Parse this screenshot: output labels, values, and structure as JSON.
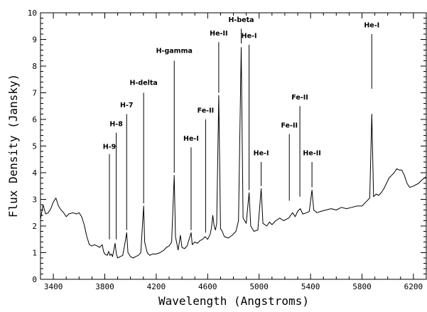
{
  "chart_data": {
    "type": "line",
    "title": "",
    "xlabel": "Wavelength (Angstroms)",
    "ylabel": "Flux Density (Jansky)",
    "xlim": [
      3300,
      6300
    ],
    "ylim": [
      0,
      10
    ],
    "x_ticks": [
      3400,
      3800,
      4200,
      4600,
      5000,
      5400,
      5800,
      6200
    ],
    "y_ticks": [
      0,
      1,
      2,
      3,
      4,
      5,
      6,
      7,
      8,
      9,
      10
    ],
    "grid": false,
    "series": [
      {
        "points": [
          [
            3300,
            2.25
          ],
          [
            3320,
            2.8
          ],
          [
            3340,
            2.45
          ],
          [
            3360,
            2.5
          ],
          [
            3380,
            2.65
          ],
          [
            3400,
            2.9
          ],
          [
            3420,
            3.05
          ],
          [
            3440,
            2.75
          ],
          [
            3460,
            2.6
          ],
          [
            3480,
            2.5
          ],
          [
            3500,
            2.35
          ],
          [
            3520,
            2.45
          ],
          [
            3550,
            2.5
          ],
          [
            3580,
            2.45
          ],
          [
            3600,
            2.5
          ],
          [
            3620,
            2.35
          ],
          [
            3640,
            2.05
          ],
          [
            3660,
            1.6
          ],
          [
            3680,
            1.3
          ],
          [
            3700,
            1.25
          ],
          [
            3720,
            1.3
          ],
          [
            3740,
            1.25
          ],
          [
            3760,
            1.2
          ],
          [
            3780,
            1.3
          ],
          [
            3790,
            1.05
          ],
          [
            3800,
            0.95
          ],
          [
            3820,
            0.9
          ],
          [
            3830,
            1.05
          ],
          [
            3840,
            0.9
          ],
          [
            3850,
            0.95
          ],
          [
            3860,
            0.85
          ],
          [
            3880,
            1.35
          ],
          [
            3890,
            0.95
          ],
          [
            3900,
            0.8
          ],
          [
            3920,
            0.85
          ],
          [
            3940,
            0.9
          ],
          [
            3960,
            1.45
          ],
          [
            3970,
            1.75
          ],
          [
            3980,
            1.0
          ],
          [
            4000,
            0.85
          ],
          [
            4020,
            0.8
          ],
          [
            4040,
            0.85
          ],
          [
            4060,
            0.9
          ],
          [
            4080,
            1.0
          ],
          [
            4095,
            2.2
          ],
          [
            4102,
            2.75
          ],
          [
            4110,
            1.4
          ],
          [
            4130,
            1.0
          ],
          [
            4150,
            0.9
          ],
          [
            4170,
            0.95
          ],
          [
            4200,
            0.95
          ],
          [
            4230,
            1.0
          ],
          [
            4260,
            1.1
          ],
          [
            4280,
            1.2
          ],
          [
            4300,
            1.25
          ],
          [
            4320,
            1.4
          ],
          [
            4340,
            3.9
          ],
          [
            4350,
            1.6
          ],
          [
            4370,
            1.1
          ],
          [
            4388,
            1.65
          ],
          [
            4400,
            1.2
          ],
          [
            4420,
            1.15
          ],
          [
            4440,
            1.25
          ],
          [
            4471,
            1.75
          ],
          [
            4480,
            1.3
          ],
          [
            4500,
            1.4
          ],
          [
            4520,
            1.35
          ],
          [
            4540,
            1.45
          ],
          [
            4560,
            1.5
          ],
          [
            4580,
            1.6
          ],
          [
            4600,
            1.5
          ],
          [
            4620,
            1.7
          ],
          [
            4630,
            1.95
          ],
          [
            4640,
            2.4
          ],
          [
            4650,
            2.0
          ],
          [
            4660,
            1.85
          ],
          [
            4670,
            2.1
          ],
          [
            4686,
            6.9
          ],
          [
            4700,
            1.9
          ],
          [
            4713,
            1.8
          ],
          [
            4730,
            1.6
          ],
          [
            4760,
            1.55
          ],
          [
            4790,
            1.65
          ],
          [
            4820,
            1.8
          ],
          [
            4840,
            2.2
          ],
          [
            4861,
            8.7
          ],
          [
            4875,
            2.3
          ],
          [
            4900,
            2.1
          ],
          [
            4922,
            3.25
          ],
          [
            4935,
            2.0
          ],
          [
            4960,
            1.8
          ],
          [
            4990,
            1.85
          ],
          [
            5016,
            3.4
          ],
          [
            5030,
            2.1
          ],
          [
            5060,
            2.0
          ],
          [
            5080,
            2.15
          ],
          [
            5100,
            2.05
          ],
          [
            5130,
            2.2
          ],
          [
            5160,
            2.3
          ],
          [
            5190,
            2.2
          ],
          [
            5230,
            2.3
          ],
          [
            5260,
            2.5
          ],
          [
            5280,
            2.35
          ],
          [
            5300,
            2.55
          ],
          [
            5320,
            2.65
          ],
          [
            5340,
            2.45
          ],
          [
            5370,
            2.5
          ],
          [
            5390,
            2.55
          ],
          [
            5411,
            3.35
          ],
          [
            5425,
            2.6
          ],
          [
            5450,
            2.5
          ],
          [
            5480,
            2.55
          ],
          [
            5520,
            2.6
          ],
          [
            5560,
            2.65
          ],
          [
            5600,
            2.6
          ],
          [
            5640,
            2.7
          ],
          [
            5680,
            2.65
          ],
          [
            5720,
            2.7
          ],
          [
            5760,
            2.75
          ],
          [
            5800,
            2.75
          ],
          [
            5830,
            2.9
          ],
          [
            5860,
            3.05
          ],
          [
            5876,
            6.2
          ],
          [
            5890,
            3.1
          ],
          [
            5910,
            3.2
          ],
          [
            5930,
            3.15
          ],
          [
            5950,
            3.25
          ],
          [
            5970,
            3.4
          ],
          [
            5990,
            3.6
          ],
          [
            6010,
            3.8
          ],
          [
            6030,
            3.9
          ],
          [
            6050,
            4.0
          ],
          [
            6070,
            4.15
          ],
          [
            6090,
            4.1
          ],
          [
            6110,
            4.1
          ],
          [
            6130,
            3.9
          ],
          [
            6150,
            3.6
          ],
          [
            6170,
            3.45
          ],
          [
            6200,
            3.5
          ],
          [
            6240,
            3.6
          ],
          [
            6270,
            3.75
          ],
          [
            6300,
            3.85
          ]
        ]
      }
    ],
    "annotations": [
      {
        "label": "H-9",
        "x": 3836,
        "line_top": 4.7,
        "line_bottom": 1.5,
        "text_y": 4.9
      },
      {
        "label": "H-8",
        "x": 3889,
        "line_top": 5.5,
        "line_bottom": 1.5,
        "text_y": 5.75
      },
      {
        "label": "H-7",
        "x": 3970,
        "line_top": 6.2,
        "line_bottom": 1.85,
        "text_y": 6.45
      },
      {
        "label": "H-delta",
        "x": 4102,
        "line_top": 7.0,
        "line_bottom": 2.85,
        "text_y": 7.3
      },
      {
        "label": "H-gamma",
        "x": 4340,
        "line_top": 8.2,
        "line_bottom": 4.0,
        "text_y": 8.5
      },
      {
        "label": "He-I",
        "x": 4471,
        "line_top": 4.95,
        "line_bottom": 1.85,
        "text_y": 5.2
      },
      {
        "label": "Fe-II",
        "x": 4584,
        "line_top": 6.0,
        "line_bottom": 1.75,
        "text_y": 6.25
      },
      {
        "label": "He-II",
        "x": 4686,
        "line_top": 8.9,
        "line_bottom": 7.0,
        "text_y": 9.15
      },
      {
        "label": "H-beta",
        "x": 4861,
        "line_top": 9.4,
        "line_bottom": 8.85,
        "text_y": 9.65
      },
      {
        "label": "He-I",
        "x": 4922,
        "line_top": 8.8,
        "line_bottom": 3.35,
        "text_y": 9.05
      },
      {
        "label": "He-I",
        "x": 5016,
        "line_top": 4.4,
        "line_bottom": 3.5,
        "text_y": 4.65
      },
      {
        "label": "Fe-II",
        "x": 5235,
        "line_top": 5.45,
        "line_bottom": 2.95,
        "text_y": 5.7
      },
      {
        "label": "Fe-II",
        "x": 5317,
        "line_top": 6.5,
        "line_bottom": 3.1,
        "text_y": 6.75
      },
      {
        "label": "He-II",
        "x": 5411,
        "line_top": 4.4,
        "line_bottom": 3.45,
        "text_y": 4.65
      },
      {
        "label": "He-I",
        "x": 5876,
        "line_top": 9.2,
        "line_bottom": 7.15,
        "text_y": 9.45
      }
    ]
  }
}
